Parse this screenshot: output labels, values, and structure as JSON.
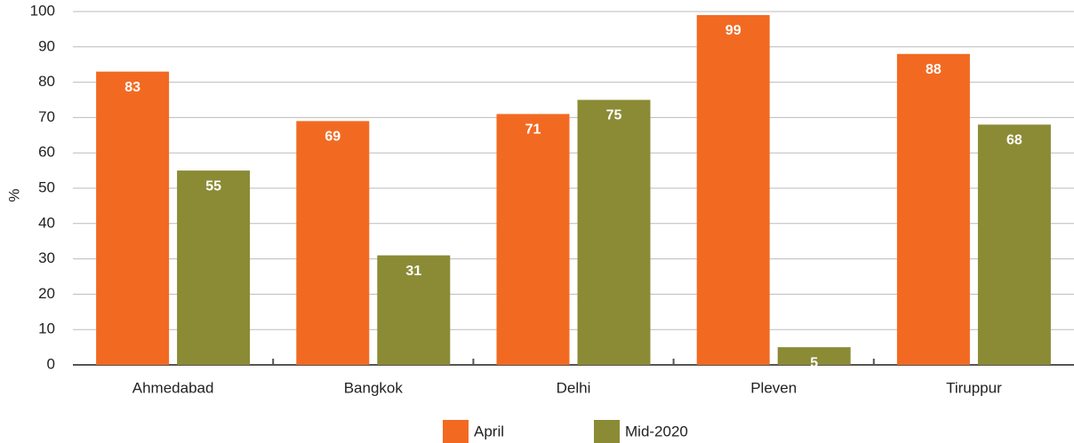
{
  "chart_data": {
    "type": "bar",
    "y_label": "%",
    "categories": [
      "Ahmedabad",
      "Bangkok",
      "Delhi",
      "Pleven",
      "Tiruppur"
    ],
    "series": [
      {
        "name": "April",
        "color": "#f26a22",
        "values": [
          83,
          69,
          71,
          99,
          88
        ]
      },
      {
        "name": "Mid-2020",
        "color": "#8b8b36",
        "values": [
          55,
          31,
          75,
          5,
          68
        ]
      }
    ],
    "ylim": [
      0,
      100
    ],
    "yticks": [
      0,
      10,
      20,
      30,
      40,
      50,
      60,
      70,
      80,
      90,
      100
    ],
    "grid": true,
    "legend": "bottom"
  }
}
